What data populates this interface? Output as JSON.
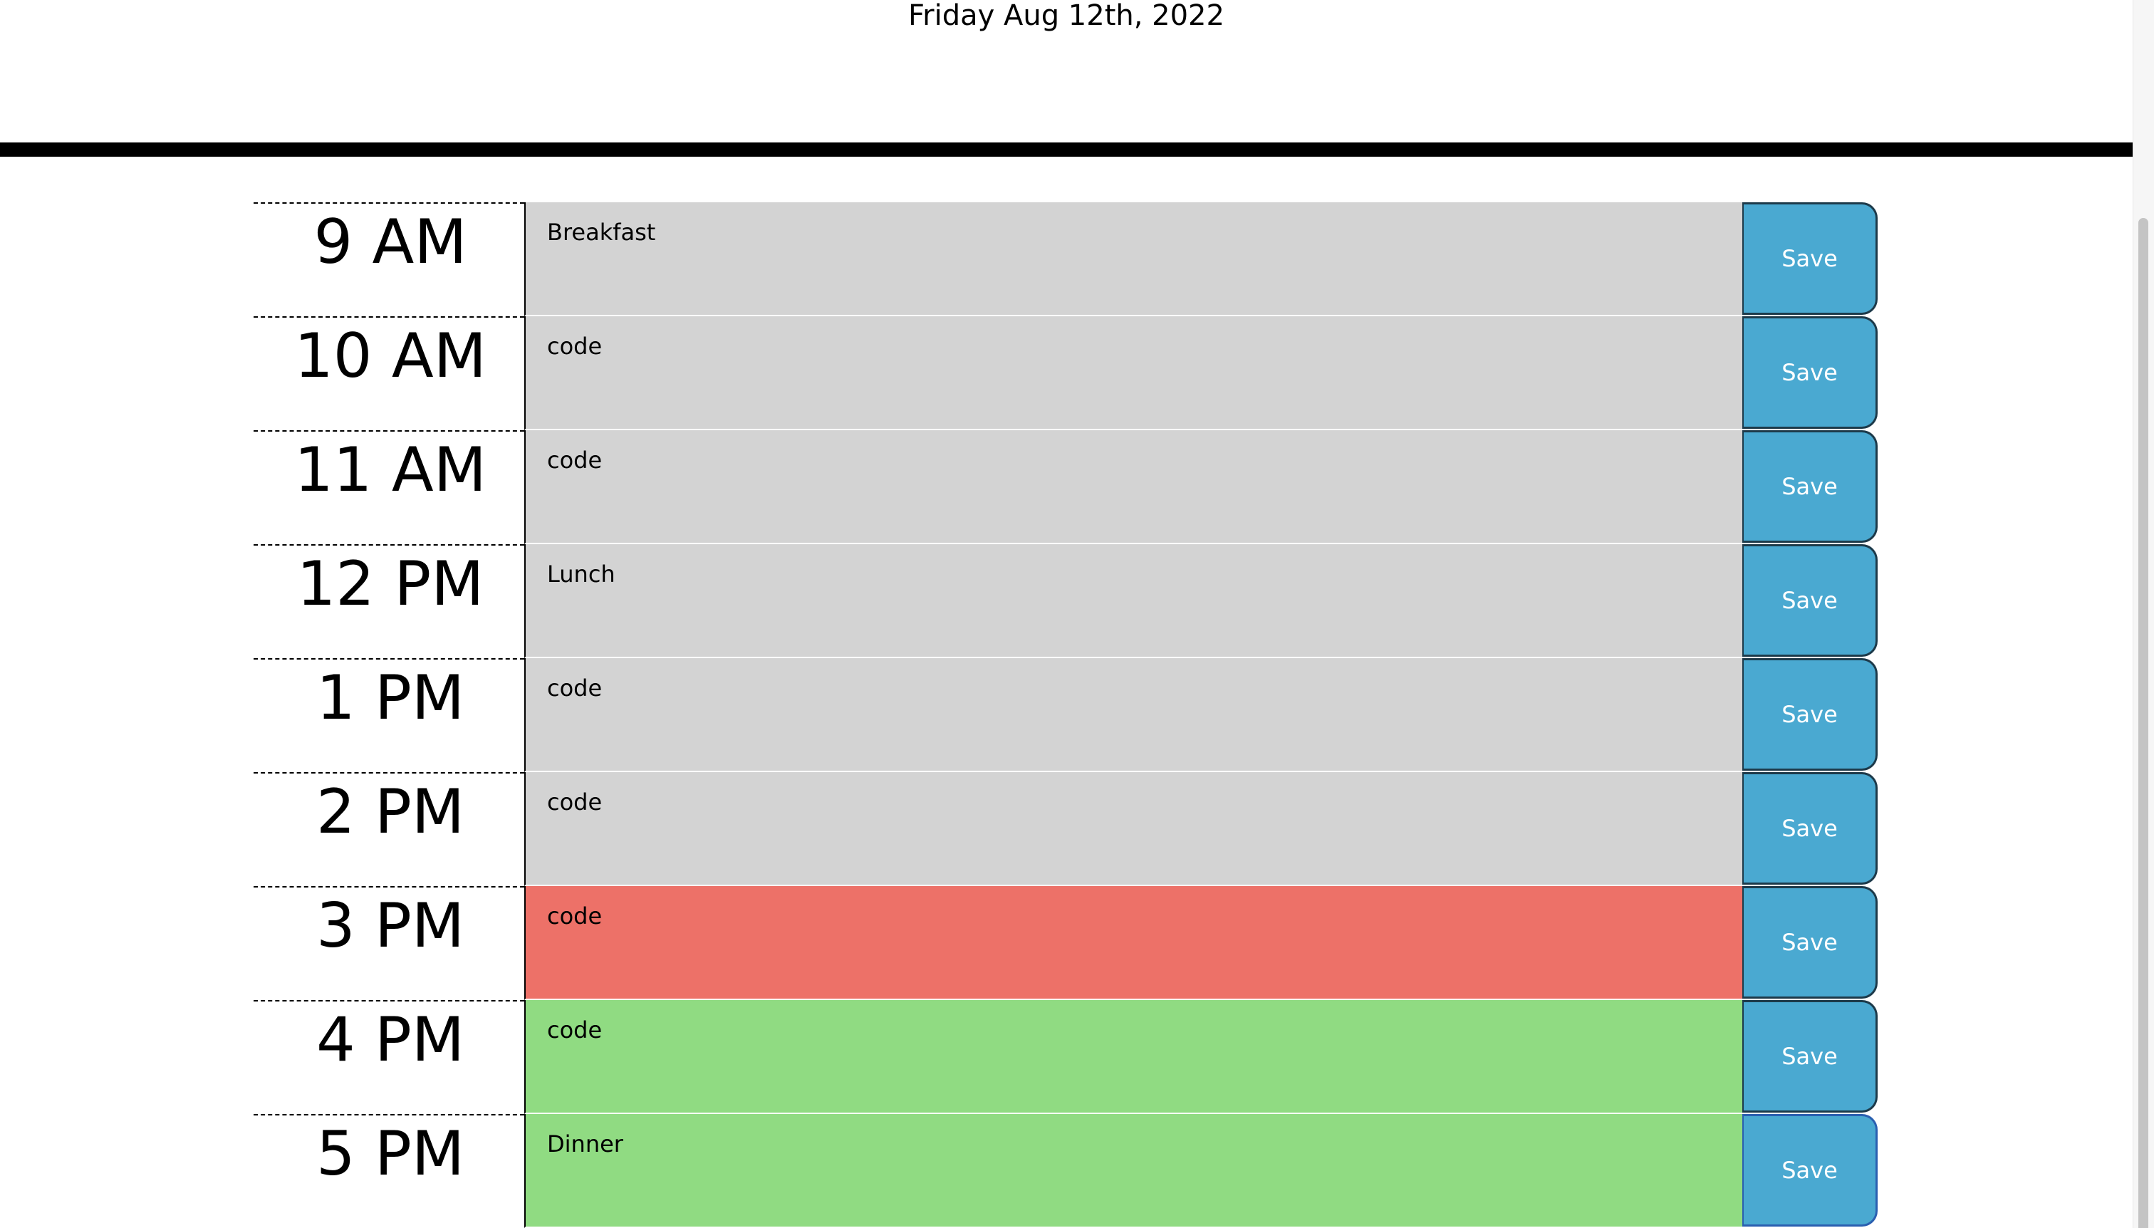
{
  "header": {
    "current_day": "Friday Aug 12th, 2022"
  },
  "rows": [
    {
      "hour": "9 AM",
      "text": "Breakfast",
      "state": "past",
      "save_label": "Save"
    },
    {
      "hour": "10 AM",
      "text": "code",
      "state": "past",
      "save_label": "Save"
    },
    {
      "hour": "11 AM",
      "text": "code",
      "state": "past",
      "save_label": "Save"
    },
    {
      "hour": "12 PM",
      "text": "Lunch",
      "state": "past",
      "save_label": "Save"
    },
    {
      "hour": "1 PM",
      "text": "code",
      "state": "past",
      "save_label": "Save"
    },
    {
      "hour": "2 PM",
      "text": "code",
      "state": "past",
      "save_label": "Save"
    },
    {
      "hour": "3 PM",
      "text": "code",
      "state": "present",
      "save_label": "Save"
    },
    {
      "hour": "4 PM",
      "text": "code",
      "state": "future",
      "save_label": "Save"
    },
    {
      "hour": "5 PM",
      "text": "Dinner",
      "state": "future",
      "save_label": "Save"
    }
  ],
  "colors": {
    "past": "#d3d3d3",
    "present": "#ed7168",
    "future": "#90db82",
    "save_button": "#4aa9d1"
  }
}
